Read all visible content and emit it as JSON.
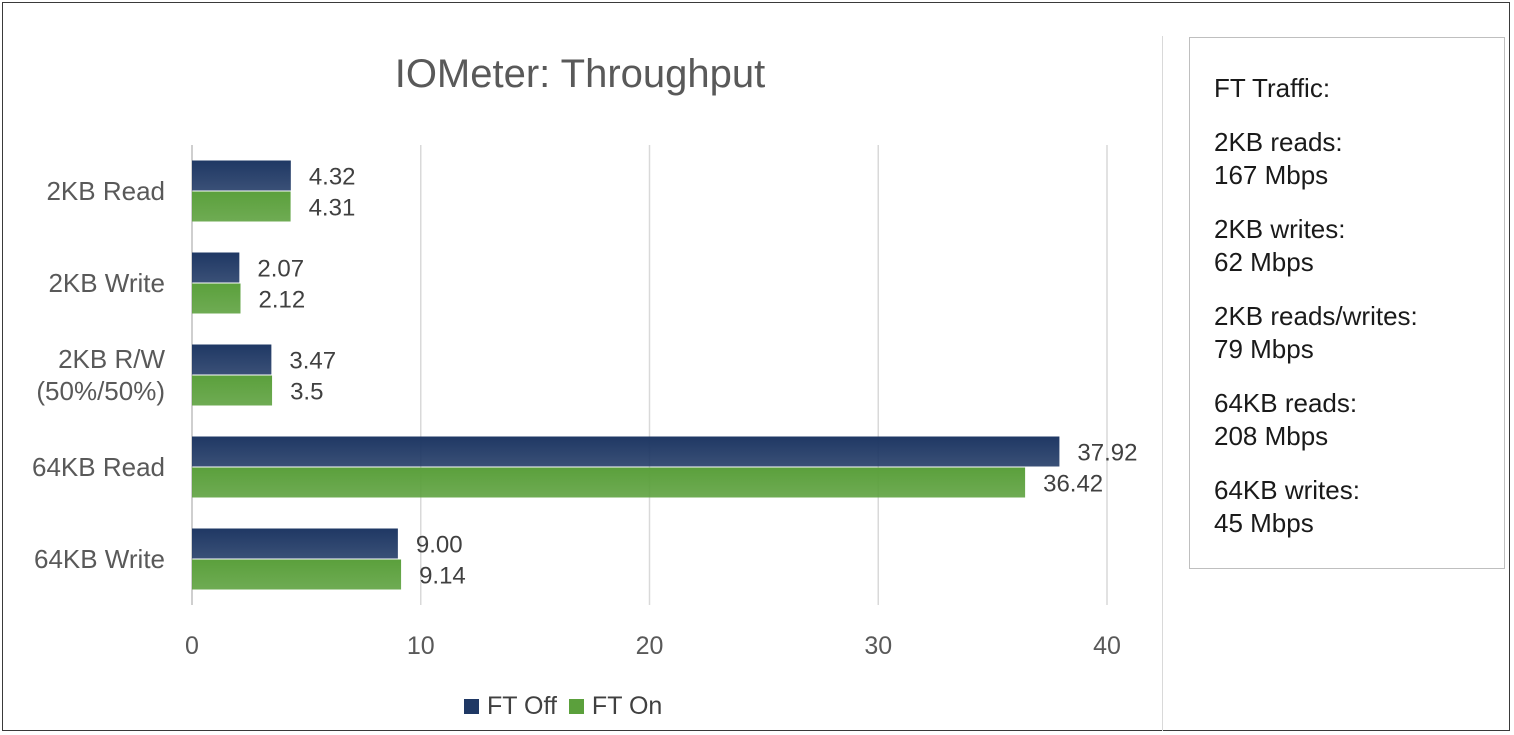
{
  "chart_data": {
    "type": "bar",
    "orientation": "horizontal",
    "title": "IOMeter: Throughput",
    "xlabel": "",
    "ylabel": "",
    "xlim": [
      0,
      40
    ],
    "x_ticks": [
      "0",
      "10",
      "20",
      "30",
      "40"
    ],
    "grid": true,
    "legend_position": "bottom",
    "categories": [
      "2KB Read",
      "2KB Write",
      "2KB R/W\n(50%/50%)",
      "64KB Read",
      "64KB Write"
    ],
    "series": [
      {
        "name": "FT Off",
        "color": "#1f3864",
        "values": [
          4.32,
          2.07,
          3.47,
          37.92,
          9.0
        ],
        "labels": [
          "4.32",
          "2.07",
          "3.47",
          "37.92",
          "9.00"
        ]
      },
      {
        "name": "FT On",
        "color": "#5ba03c",
        "values": [
          4.31,
          2.12,
          3.5,
          36.42,
          9.14
        ],
        "labels": [
          "4.31",
          "2.12",
          "3.5",
          "36.42",
          "9.14"
        ]
      }
    ]
  },
  "info_panel": {
    "heading": "FT Traffic:",
    "entries": [
      {
        "label": "2KB reads:",
        "value": "167 Mbps"
      },
      {
        "label": "2KB writes:",
        "value": "62 Mbps"
      },
      {
        "label": "2KB reads/writes:",
        "value": "79 Mbps"
      },
      {
        "label": "64KB reads:",
        "value": "208 Mbps"
      },
      {
        "label": "64KB writes:",
        "value": "45 Mbps"
      }
    ]
  }
}
